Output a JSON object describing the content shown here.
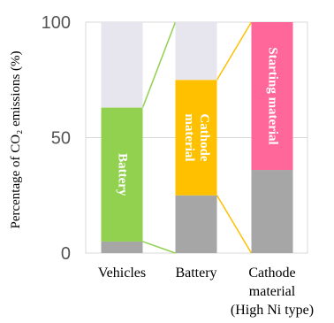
{
  "chart_data": {
    "type": "bar",
    "stacked": true,
    "ylabel": "Percentage of CO₂ emissions (%)",
    "ylim": [
      0,
      100
    ],
    "yticks": [
      "0",
      "50",
      "100"
    ],
    "grid": true,
    "categories": [
      {
        "lines": [
          "Vehicles"
        ]
      },
      {
        "lines": [
          "Battery"
        ]
      },
      {
        "lines": [
          "Cathode",
          "material",
          "(High Ni type)"
        ]
      }
    ],
    "bars": [
      {
        "segments": [
          {
            "from": 0,
            "to": 5,
            "color": "#a6a6a6",
            "label": ""
          },
          {
            "from": 5,
            "to": 63,
            "color": "#92d050",
            "label": "Battery"
          },
          {
            "from": 63,
            "to": 100,
            "color": "#e7e6ee",
            "label": ""
          }
        ]
      },
      {
        "segments": [
          {
            "from": 0,
            "to": 25,
            "color": "#a6a6a6",
            "label": ""
          },
          {
            "from": 25,
            "to": 75,
            "color": "#ffc000",
            "label": "Cathode\nmaterial"
          },
          {
            "from": 75,
            "to": 100,
            "color": "#e7e6ee",
            "label": ""
          }
        ]
      },
      {
        "segments": [
          {
            "from": 0,
            "to": 36,
            "color": "#a6a6a6",
            "label": ""
          },
          {
            "from": 36,
            "to": 100,
            "color": "#ff6699",
            "label": "Starting material"
          }
        ]
      }
    ],
    "connectors": [
      {
        "from_bar": 0,
        "to_bar": 1,
        "left_values": [
          5,
          63
        ],
        "right_values": [
          0,
          100
        ],
        "color": "#92d050"
      },
      {
        "from_bar": 1,
        "to_bar": 2,
        "left_values": [
          25,
          75
        ],
        "right_values": [
          0,
          100
        ],
        "color": "#ffc000"
      }
    ]
  }
}
